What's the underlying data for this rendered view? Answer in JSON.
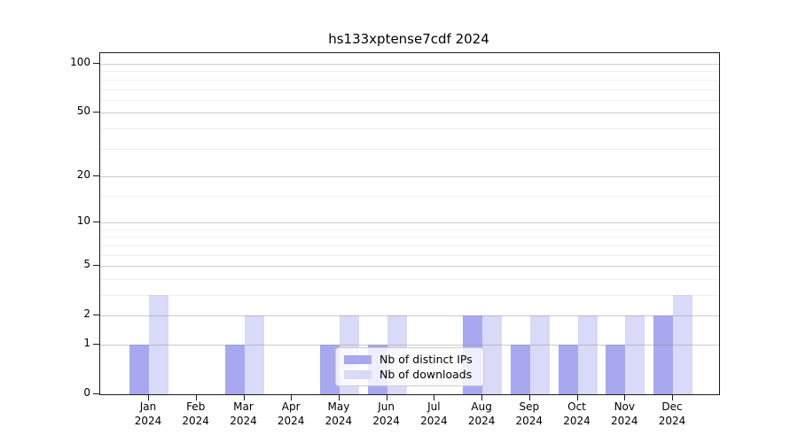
{
  "chart_data": {
    "type": "bar",
    "title": "hs133xptense7cdf 2024",
    "year_label": "2024",
    "months": [
      "Jan",
      "Feb",
      "Mar",
      "Apr",
      "May",
      "Jun",
      "Jul",
      "Aug",
      "Sep",
      "Oct",
      "Nov",
      "Dec"
    ],
    "series": [
      {
        "name": "Nb of distinct IPs",
        "color": "#a8a8f1",
        "values": [
          1,
          0,
          1,
          0,
          1,
          1,
          0,
          2,
          1,
          1,
          1,
          2
        ]
      },
      {
        "name": "Nb of downloads",
        "color": "#d9d9f8",
        "values": [
          3,
          0,
          2,
          0,
          2,
          2,
          0,
          2,
          2,
          2,
          2,
          3
        ]
      }
    ],
    "yticks": [
      0,
      1,
      2,
      5,
      10,
      20,
      50,
      100
    ],
    "minor_gridline_values": [
      3,
      4,
      6,
      7,
      8,
      9,
      15,
      30,
      40,
      60,
      70,
      80,
      90
    ],
    "scale": "log1p",
    "ylim": [
      0,
      100
    ],
    "grid": "on",
    "legend_position": "lower center"
  }
}
